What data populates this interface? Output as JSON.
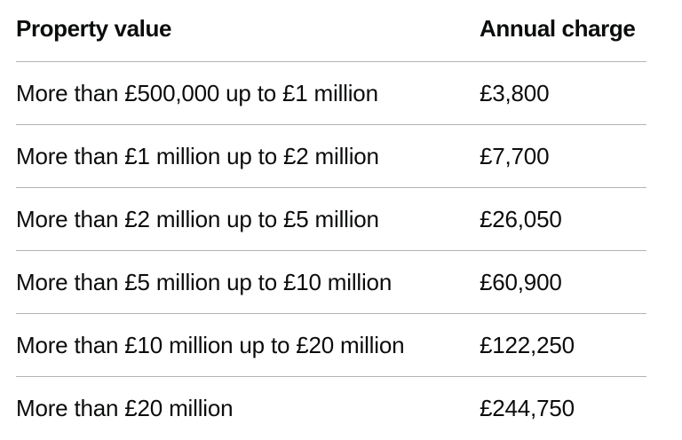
{
  "table": {
    "headers": {
      "property_value": "Property value",
      "annual_charge": "Annual charge"
    },
    "rows": [
      {
        "property_value": "More than £500,000 up to £1 million",
        "annual_charge": "£3,800"
      },
      {
        "property_value": "More than £1 million up to £2 million",
        "annual_charge": "£7,700"
      },
      {
        "property_value": "More than £2 million up to £5 million",
        "annual_charge": "£26,050"
      },
      {
        "property_value": "More than £5 million up to £10 million",
        "annual_charge": "£60,900"
      },
      {
        "property_value": "More than £10 million up to £20 million",
        "annual_charge": "£122,250"
      },
      {
        "property_value": "More than £20 million",
        "annual_charge": "£244,750"
      }
    ]
  }
}
